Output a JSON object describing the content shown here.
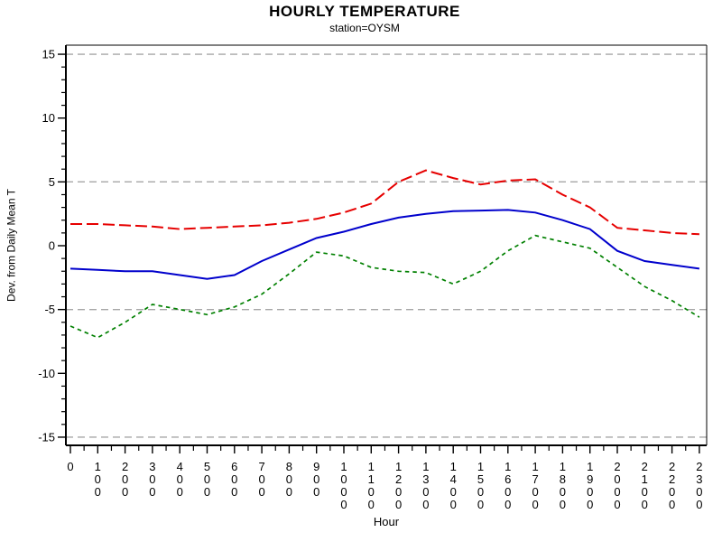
{
  "chart_data": {
    "type": "line",
    "title": "HOURLY TEMPERATURE",
    "subtitle": "station=OYSM",
    "xlabel": "Hour",
    "ylabel": "Dev. from Daily Mean T",
    "x_categories": [
      "0",
      "100",
      "200",
      "300",
      "400",
      "500",
      "600",
      "700",
      "800",
      "900",
      "1000",
      "1100",
      "1200",
      "1300",
      "1400",
      "1500",
      "1600",
      "1700",
      "1800",
      "1900",
      "2000",
      "2100",
      "2200",
      "2300"
    ],
    "x_hours": [
      0,
      1,
      2,
      3,
      4,
      5,
      6,
      7,
      8,
      9,
      10,
      11,
      12,
      13,
      14,
      15,
      16,
      17,
      18,
      19,
      20,
      21,
      22,
      23
    ],
    "y_ticks": [
      15,
      10,
      5,
      0,
      -5,
      -10,
      -15
    ],
    "ylim": [
      -15.7,
      15.7
    ],
    "y_minor_tick_step": 1,
    "x_minor_tick_step": 0.5,
    "reference_lines_y": [
      15,
      5,
      -5,
      -15
    ],
    "legend": "none",
    "grid": "horizontal dashed reference lines only",
    "series": [
      {
        "name": "red-dashed-upper",
        "style": "long-dash",
        "color": "#e60000",
        "values": [
          1.7,
          1.7,
          1.6,
          1.5,
          1.3,
          1.4,
          1.5,
          1.6,
          1.8,
          2.1,
          2.6,
          3.3,
          5.0,
          5.9,
          5.3,
          4.8,
          5.1,
          5.2,
          4.0,
          3.0,
          1.4,
          1.2,
          1.0,
          0.9
        ]
      },
      {
        "name": "blue-solid-middle",
        "style": "solid",
        "color": "#0000cc",
        "values": [
          -1.8,
          -1.9,
          -2.0,
          -2.0,
          -2.3,
          -2.6,
          -2.3,
          -1.2,
          -0.3,
          0.6,
          1.1,
          1.7,
          2.2,
          2.5,
          2.7,
          2.75,
          2.8,
          2.6,
          2.0,
          1.3,
          -0.4,
          -1.2,
          -1.5,
          -1.8
        ]
      },
      {
        "name": "green-dashed-lower",
        "style": "short-dash",
        "color": "#008000",
        "values": [
          -6.3,
          -7.2,
          -6.0,
          -4.6,
          -5.0,
          -5.4,
          -4.8,
          -3.8,
          -2.2,
          -0.5,
          -0.8,
          -1.7,
          -2.0,
          -2.1,
          -3.0,
          -2.0,
          -0.4,
          0.8,
          0.3,
          -0.2,
          -1.7,
          -3.2,
          -4.3,
          -5.6
        ]
      }
    ],
    "colors": {
      "reference_line": "#a6a6a6",
      "axis": "#000000",
      "background": "#ffffff"
    }
  }
}
